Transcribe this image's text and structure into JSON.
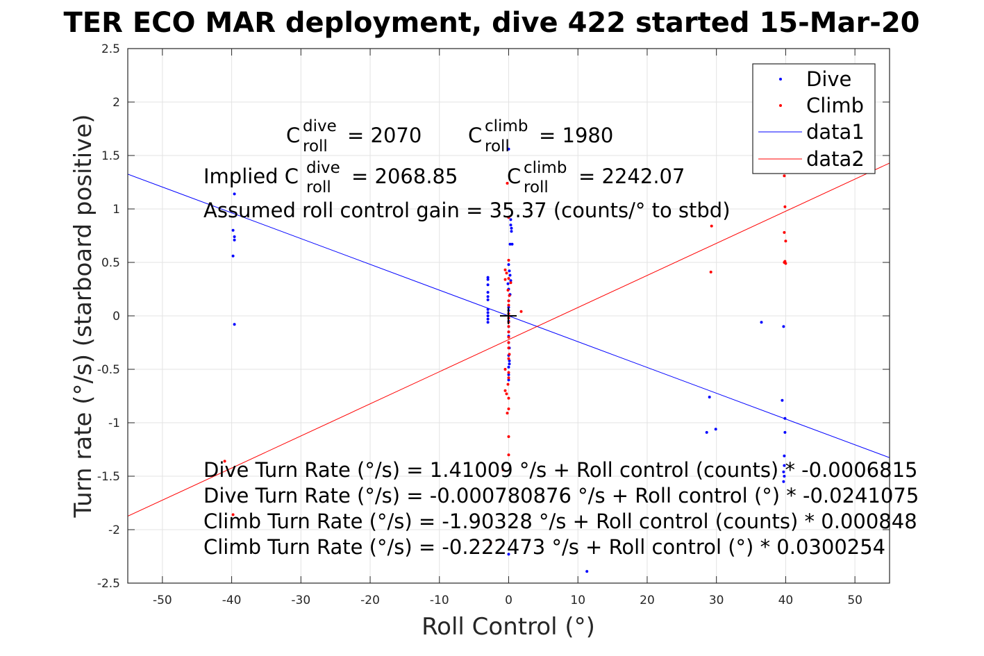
{
  "chart_data": {
    "type": "scatter",
    "title": "TER ECO MAR deployment, dive 422 started 15-Mar-20",
    "xlabel": "Roll Control (°)",
    "ylabel": "Turn rate (°/s) (starboard positive)",
    "xlim": [
      -55,
      55
    ],
    "ylim": [
      -2.5,
      2.5
    ],
    "xticks": [
      "-50",
      "-40",
      "-30",
      "-20",
      "-10",
      "0",
      "10",
      "20",
      "30",
      "40",
      "50"
    ],
    "yticks": [
      "-2.5",
      "-2",
      "-1.5",
      "-1",
      "-0.5",
      "0",
      "0.5",
      "1",
      "1.5",
      "2",
      "2.5"
    ],
    "grid": true,
    "legend_position": "top-right",
    "series": [
      {
        "name": "Dive",
        "kind": "points",
        "color": "#0000ff",
        "points": [
          [
            -39.6,
            1.14
          ],
          [
            -39.8,
            0.8
          ],
          [
            -39.6,
            0.74
          ],
          [
            -39.6,
            0.71
          ],
          [
            -39.8,
            0.56
          ],
          [
            -39.6,
            -0.08
          ],
          [
            -3.0,
            0.36
          ],
          [
            -3.0,
            0.34
          ],
          [
            -3.0,
            0.29
          ],
          [
            -3.0,
            0.22
          ],
          [
            -3.0,
            0.18
          ],
          [
            -3.0,
            0.15
          ],
          [
            -3.0,
            0.06
          ],
          [
            -3.0,
            0.03
          ],
          [
            -3.0,
            0.0
          ],
          [
            -3.0,
            -0.03
          ],
          [
            -3.0,
            -0.06
          ],
          [
            0.0,
            1.56
          ],
          [
            0.3,
            0.9
          ],
          [
            0.3,
            0.85
          ],
          [
            0.4,
            0.82
          ],
          [
            0.4,
            0.79
          ],
          [
            0.2,
            0.67
          ],
          [
            0.5,
            0.67
          ],
          [
            0.0,
            0.48
          ],
          [
            0.1,
            0.42
          ],
          [
            0.2,
            0.38
          ],
          [
            0.3,
            0.33
          ],
          [
            -0.1,
            0.3
          ],
          [
            0.0,
            0.25
          ],
          [
            0.2,
            0.2
          ],
          [
            0.0,
            0.14
          ],
          [
            0.0,
            0.08
          ],
          [
            0.0,
            0.05
          ],
          [
            0.0,
            0.02
          ],
          [
            0.0,
            -0.02
          ],
          [
            0.0,
            -0.05
          ],
          [
            0.0,
            -0.1
          ],
          [
            0.0,
            -0.15
          ],
          [
            0.0,
            -0.19
          ],
          [
            0.0,
            -0.25
          ],
          [
            0.1,
            -0.3
          ],
          [
            0.0,
            -0.37
          ],
          [
            0.1,
            -0.42
          ],
          [
            0.1,
            -0.45
          ],
          [
            0.0,
            -0.48
          ],
          [
            0.0,
            -0.55
          ],
          [
            0.0,
            -0.6
          ],
          [
            0.0,
            -2.23
          ],
          [
            11.3,
            -2.39
          ],
          [
            28.6,
            -1.09
          ],
          [
            29.0,
            -0.76
          ],
          [
            29.9,
            -1.06
          ],
          [
            36.5,
            -0.06
          ],
          [
            39.7,
            -0.1
          ],
          [
            39.5,
            -0.79
          ],
          [
            39.9,
            -0.96
          ],
          [
            39.9,
            -1.09
          ],
          [
            39.8,
            -1.31
          ],
          [
            39.8,
            -1.4
          ],
          [
            39.7,
            -1.46
          ],
          [
            39.8,
            -1.5
          ],
          [
            39.7,
            -1.55
          ]
        ]
      },
      {
        "name": "Climb",
        "kind": "points",
        "color": "#ff0000",
        "points": [
          [
            -41.0,
            -1.36
          ],
          [
            -39.8,
            -1.86
          ],
          [
            -0.2,
            1.24
          ],
          [
            0.0,
            0.92
          ],
          [
            0.0,
            0.52
          ],
          [
            -0.5,
            0.43
          ],
          [
            -0.3,
            0.4
          ],
          [
            0.0,
            0.35
          ],
          [
            -0.5,
            0.34
          ],
          [
            0.3,
            0.31
          ],
          [
            -0.1,
            0.24
          ],
          [
            0.1,
            0.19
          ],
          [
            0.0,
            0.14
          ],
          [
            0.0,
            0.1
          ],
          [
            1.8,
            0.04
          ],
          [
            0.0,
            0.02
          ],
          [
            0.0,
            -0.02
          ],
          [
            0.0,
            -0.06
          ],
          [
            0.0,
            -0.1
          ],
          [
            0.0,
            -0.15
          ],
          [
            0.0,
            -0.2
          ],
          [
            0.0,
            -0.25
          ],
          [
            0.0,
            -0.3
          ],
          [
            0.1,
            -0.36
          ],
          [
            0.0,
            -0.4
          ],
          [
            -0.5,
            -0.5
          ],
          [
            0.0,
            -0.53
          ],
          [
            0.0,
            -0.58
          ],
          [
            -0.1,
            -0.64
          ],
          [
            -0.5,
            -0.7
          ],
          [
            -0.3,
            -0.73
          ],
          [
            0.0,
            -0.77
          ],
          [
            0.0,
            -0.87
          ],
          [
            -0.2,
            -0.91
          ],
          [
            0.0,
            -1.13
          ],
          [
            0.0,
            -1.3
          ],
          [
            -0.8,
            -1.44
          ],
          [
            -2.6,
            -2.12
          ],
          [
            29.3,
            0.84
          ],
          [
            29.2,
            0.41
          ],
          [
            39.8,
            1.31
          ],
          [
            39.9,
            1.02
          ],
          [
            39.8,
            0.78
          ],
          [
            40.0,
            0.7
          ],
          [
            39.9,
            0.51
          ],
          [
            39.8,
            0.5
          ],
          [
            40.0,
            0.49
          ]
        ]
      },
      {
        "name": "data1",
        "kind": "line",
        "color": "#0000ff",
        "points": [
          [
            -55,
            1.3253
          ],
          [
            55,
            -1.3269
          ]
        ]
      },
      {
        "name": "data2",
        "kind": "line",
        "color": "#ff0000",
        "points": [
          [
            -55,
            -1.8739
          ],
          [
            55,
            1.429
          ]
        ]
      }
    ],
    "annotations": {
      "c_roll_dive_label": "C",
      "c_roll_dive_sup": "dive",
      "c_roll_dive_sub": "roll",
      "c_roll_dive_value": "= 2070",
      "c_roll_climb_label": "C",
      "c_roll_climb_sup": "climb",
      "c_roll_climb_sub": "roll",
      "c_roll_climb_value": "= 1980",
      "implied_prefix": "Implied C",
      "implied_dive_sup": "dive",
      "implied_dive_sub": "roll",
      "implied_dive_value": "= 2068.85",
      "implied_climb_label": "C",
      "implied_climb_sup": "climb",
      "implied_climb_sub": "roll",
      "implied_climb_value": "= 2242.07",
      "gain_line": "Assumed roll control gain = 35.37 (counts/° to stbd)",
      "eq_lines": [
        "Dive Turn Rate (°/s) = 1.41009 °/s + Roll control (counts) * -0.0006815",
        "Dive Turn Rate (°/s) = -0.000780876 °/s + Roll control (°) * -0.0241075",
        "Climb Turn Rate (°/s) = -1.90328 °/s + Roll control (counts) * 0.000848",
        "Climb Turn Rate (°/s) = -0.222473 °/s + Roll control (°) * 0.0300254"
      ]
    }
  }
}
